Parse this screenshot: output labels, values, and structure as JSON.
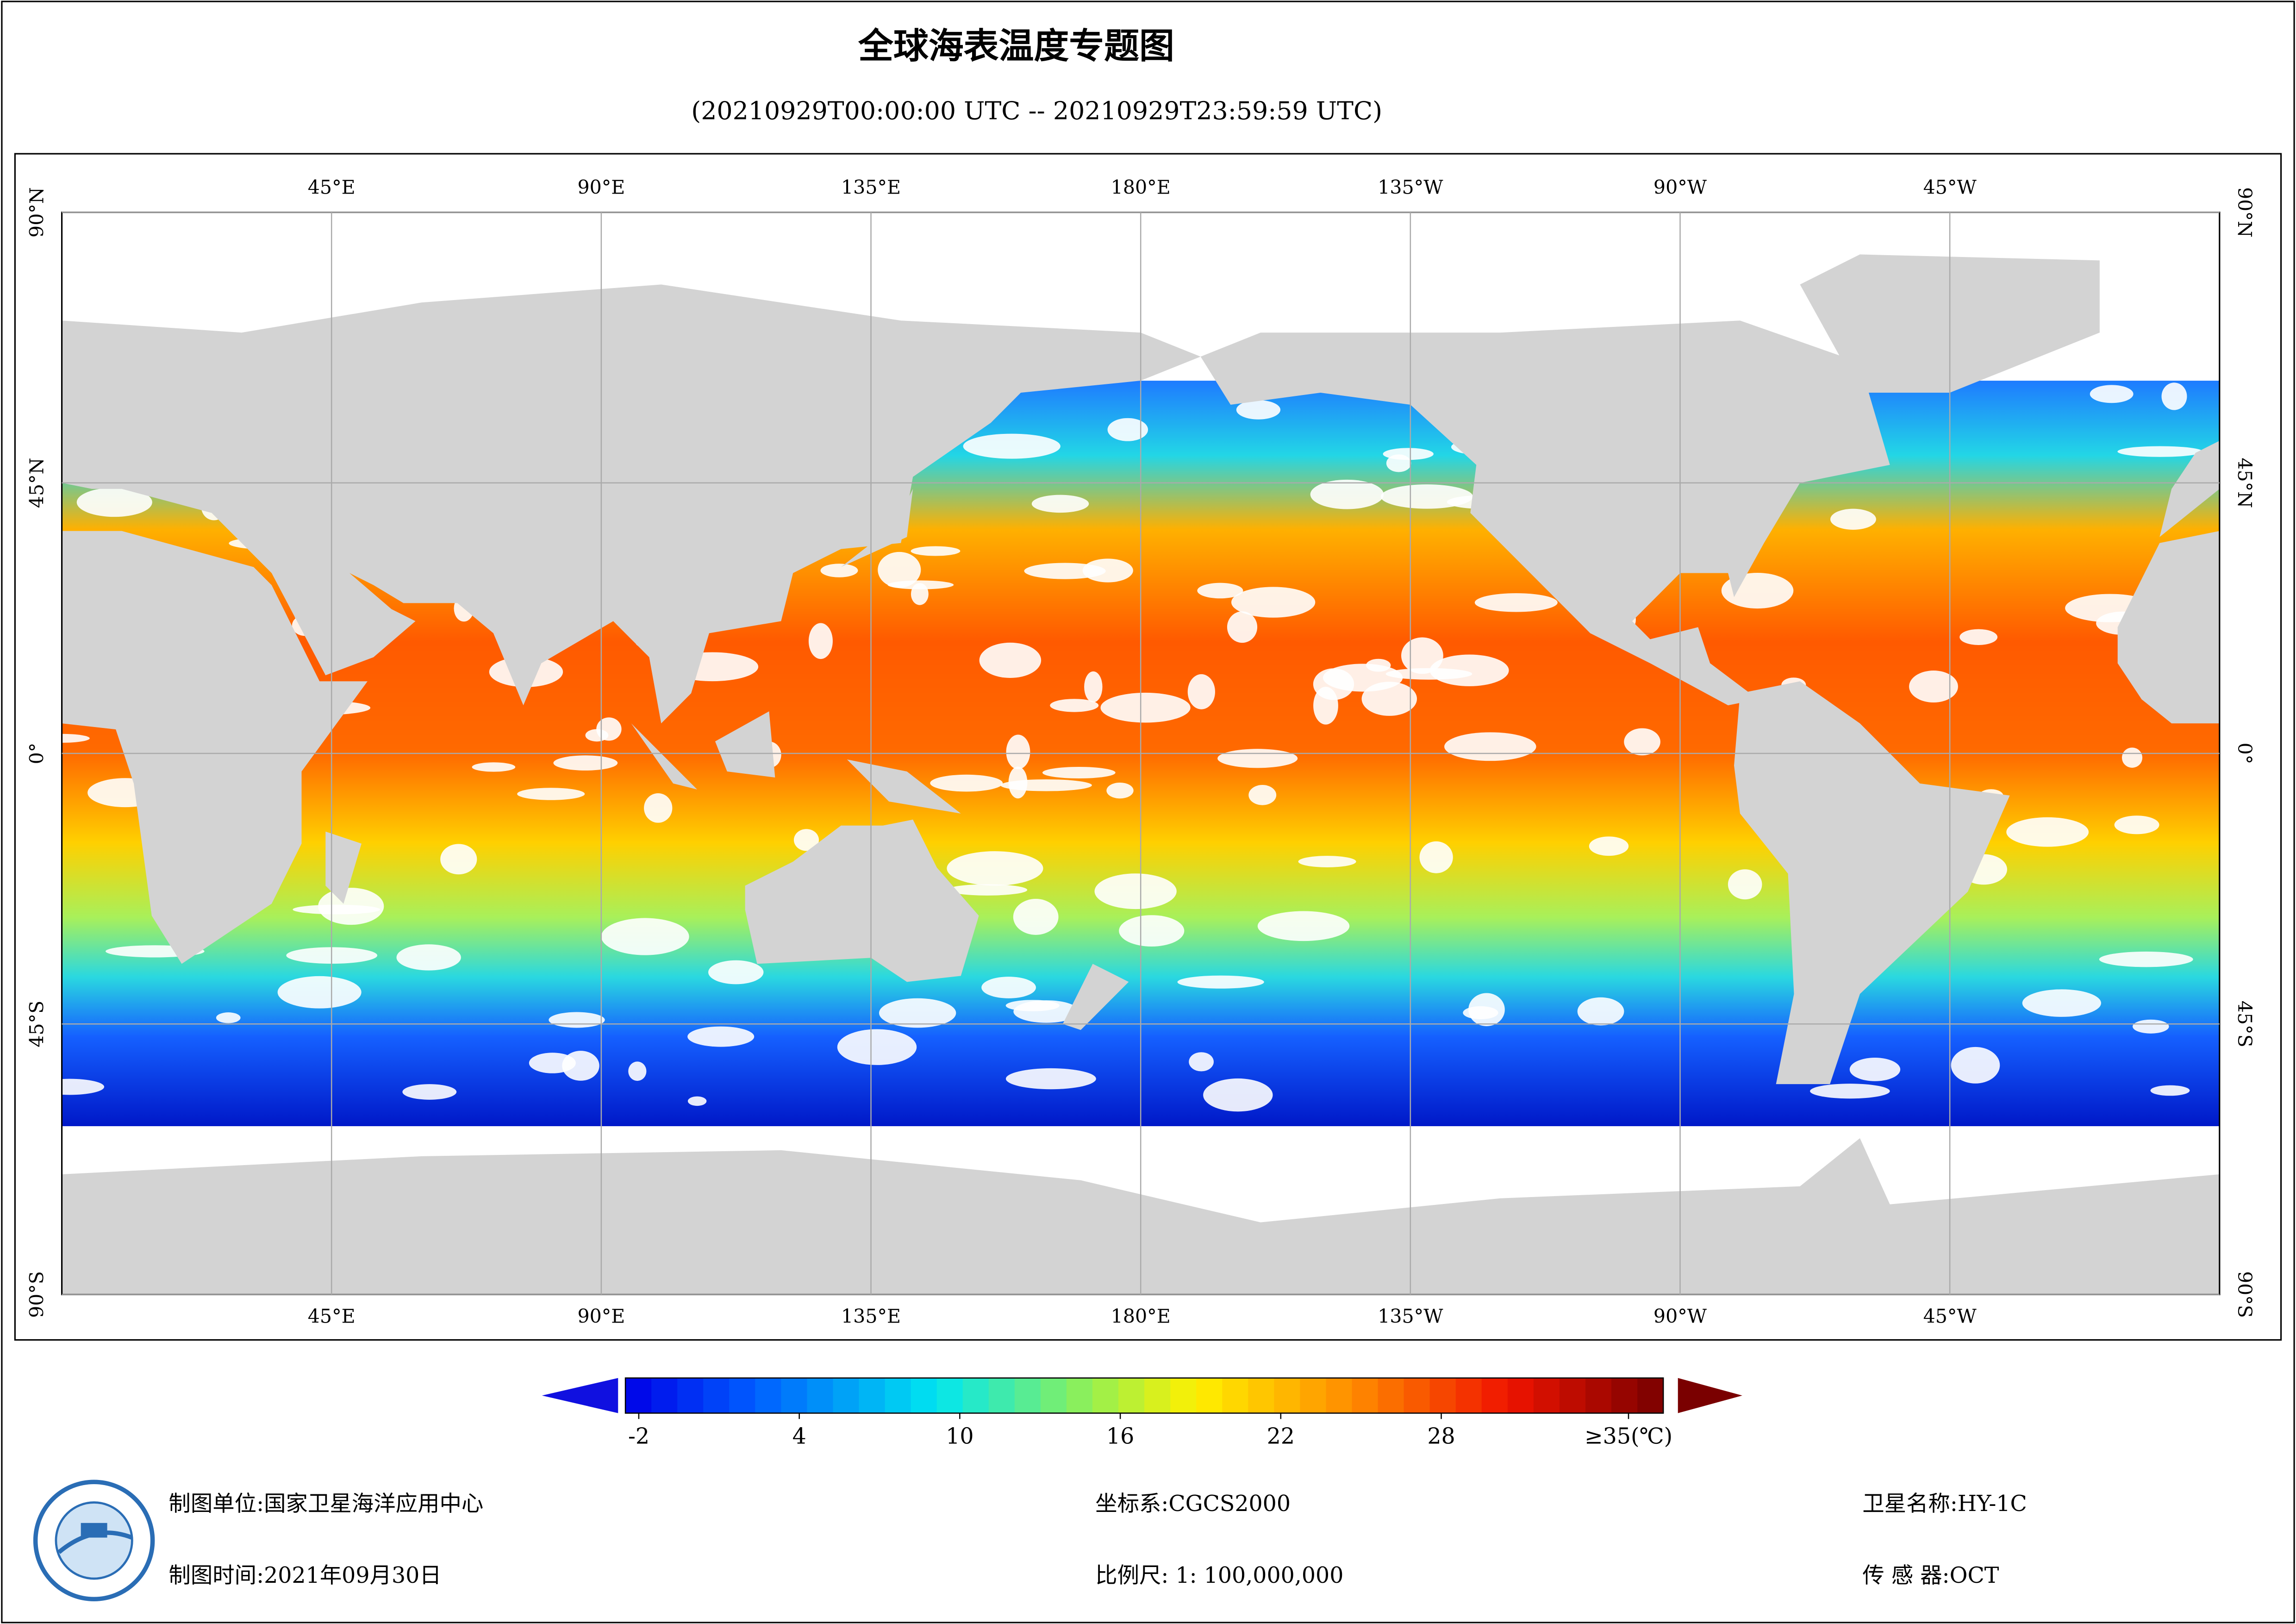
{
  "title": "全球海表温度专题图",
  "subtitle": "(20210929T00:00:00 UTC -- 20210929T23:59:59 UTC)",
  "map": {
    "lon_range": [
      0,
      360
    ],
    "lat_range": [
      -90,
      90
    ],
    "lon_ticks": [
      {
        "value": 45,
        "label": "45°E"
      },
      {
        "value": 90,
        "label": "90°E"
      },
      {
        "value": 135,
        "label": "135°E"
      },
      {
        "value": 180,
        "label": "180°E"
      },
      {
        "value": 225,
        "label": "135°W"
      },
      {
        "value": 270,
        "label": "90°W"
      },
      {
        "value": 315,
        "label": "45°W"
      }
    ],
    "lat_ticks": [
      {
        "value": 90,
        "label": "90°N"
      },
      {
        "value": 45,
        "label": "45°N"
      },
      {
        "value": 0,
        "label": "0°"
      },
      {
        "value": -45,
        "label": "45°S"
      },
      {
        "value": -90,
        "label": "90°S"
      }
    ]
  },
  "colorbar": {
    "range": [
      -2.5,
      36.3
    ],
    "ticks": [
      -2,
      4,
      10,
      16,
      22,
      28,
      {
        "value": 35,
        "label": "≥35(℃)"
      }
    ]
  },
  "footer": {
    "unit": "制图单位:国家卫星海洋应用中心",
    "time": "制图时间:2021年09月30日",
    "crs": "坐标系:CGCS2000",
    "scale": "比例尺: 1: 100,000,000",
    "satellite": "卫星名称:HY-1C",
    "sensor": "传 感 器:OCT"
  }
}
